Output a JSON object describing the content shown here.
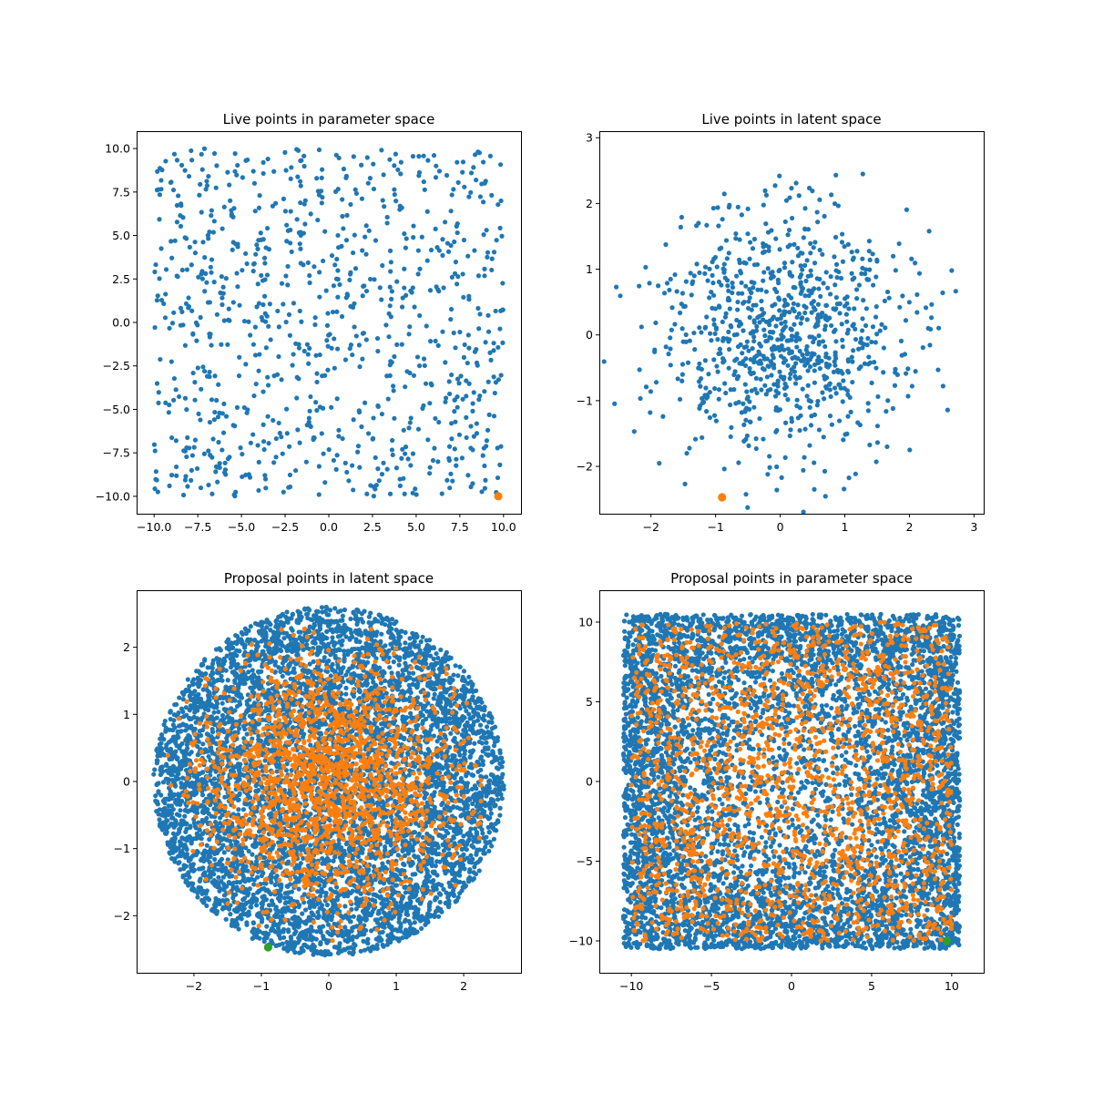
{
  "chart_data": [
    {
      "type": "scatter",
      "title": "Live points in parameter space",
      "xlabel": "",
      "ylabel": "",
      "xlim": [
        -11.0,
        11.0
      ],
      "ylim": [
        -11.0,
        11.0
      ],
      "xticks": [
        -10.0,
        -7.5,
        -5.0,
        -2.5,
        0.0,
        2.5,
        5.0,
        7.5,
        10.0
      ],
      "xtick_labels": [
        "−10.0",
        "−7.5",
        "−5.0",
        "−2.5",
        "0.0",
        "2.5",
        "5.0",
        "7.5",
        "10.0"
      ],
      "yticks": [
        -10.0,
        -7.5,
        -5.0,
        -2.5,
        0.0,
        2.5,
        5.0,
        7.5,
        10.0
      ],
      "ytick_labels": [
        "−10.0",
        "−7.5",
        "−5.0",
        "−2.5",
        "0.0",
        "2.5",
        "5.0",
        "7.5",
        "10.0"
      ],
      "grid": false,
      "series": [
        {
          "color": "#1f77b4",
          "distribution": "uniform-square",
          "count": 900,
          "range": [
            -10.0,
            10.0
          ],
          "seed": 11
        },
        {
          "color": "#ff7f0e",
          "marker": "large",
          "points": [
            [
              9.7,
              -10.0
            ]
          ]
        }
      ]
    },
    {
      "type": "scatter",
      "title": "Live points in latent space",
      "xlabel": "",
      "ylabel": "",
      "xlim": [
        -2.8,
        3.15
      ],
      "ylim": [
        -2.72,
        3.1
      ],
      "xticks": [
        -2,
        -1,
        0,
        1,
        2,
        3
      ],
      "xtick_labels": [
        "−2",
        "−1",
        "0",
        "1",
        "2",
        "3"
      ],
      "yticks": [
        -2,
        -1,
        0,
        1,
        2,
        3
      ],
      "ytick_labels": [
        "−2",
        "−1",
        "0",
        "1",
        "2",
        "3"
      ],
      "grid": false,
      "series": [
        {
          "color": "#1f77b4",
          "distribution": "gaussian-truncated",
          "count": 900,
          "sigma": 0.95,
          "radius": 2.85,
          "seed": 23
        },
        {
          "color": "#ff7f0e",
          "marker": "large",
          "points": [
            [
              -0.9,
              -2.47
            ]
          ]
        }
      ]
    },
    {
      "type": "scatter",
      "title": "Proposal points in latent space",
      "xlabel": "",
      "ylabel": "",
      "xlim": [
        -2.85,
        2.85
      ],
      "ylim": [
        -2.85,
        2.85
      ],
      "xticks": [
        -2,
        -1,
        0,
        1,
        2
      ],
      "xtick_labels": [
        "−2",
        "−1",
        "0",
        "1",
        "2"
      ],
      "yticks": [
        -2,
        -1,
        0,
        1,
        2
      ],
      "ytick_labels": [
        "−2",
        "−1",
        "0",
        "1",
        "2"
      ],
      "grid": false,
      "series": [
        {
          "color": "#1f77b4",
          "distribution": "uniform-disk",
          "count": 6500,
          "radius": 2.6,
          "seed": 37
        },
        {
          "color": "#ff7f0e",
          "distribution": "gaussian-truncated",
          "count": 1800,
          "sigma": 0.95,
          "radius": 2.45,
          "seed": 41
        },
        {
          "color": "#2ca02c",
          "marker": "large",
          "points": [
            [
              -0.9,
              -2.47
            ]
          ]
        }
      ]
    },
    {
      "type": "scatter",
      "title": "Proposal points in parameter space",
      "xlabel": "",
      "ylabel": "",
      "xlim": [
        -12.0,
        12.0
      ],
      "ylim": [
        -12.0,
        12.0
      ],
      "xticks": [
        -10,
        -5,
        0,
        5,
        10
      ],
      "xtick_labels": [
        "−10",
        "−5",
        "0",
        "5",
        "10"
      ],
      "yticks": [
        -10,
        -5,
        0,
        5,
        10
      ],
      "ytick_labels": [
        "−10",
        "−5",
        "0",
        "5",
        "10"
      ],
      "grid": false,
      "series": [
        {
          "color": "#1f77b4",
          "distribution": "uniform-square-edge",
          "count": 6500,
          "range": [
            -10.5,
            10.5
          ],
          "seed": 53
        },
        {
          "color": "#ff7f0e",
          "distribution": "uniform-square",
          "count": 1800,
          "range": [
            -10.0,
            10.0
          ],
          "seed": 59
        },
        {
          "color": "#2ca02c",
          "marker": "large",
          "points": [
            [
              9.7,
              -10.0
            ]
          ]
        }
      ]
    }
  ]
}
